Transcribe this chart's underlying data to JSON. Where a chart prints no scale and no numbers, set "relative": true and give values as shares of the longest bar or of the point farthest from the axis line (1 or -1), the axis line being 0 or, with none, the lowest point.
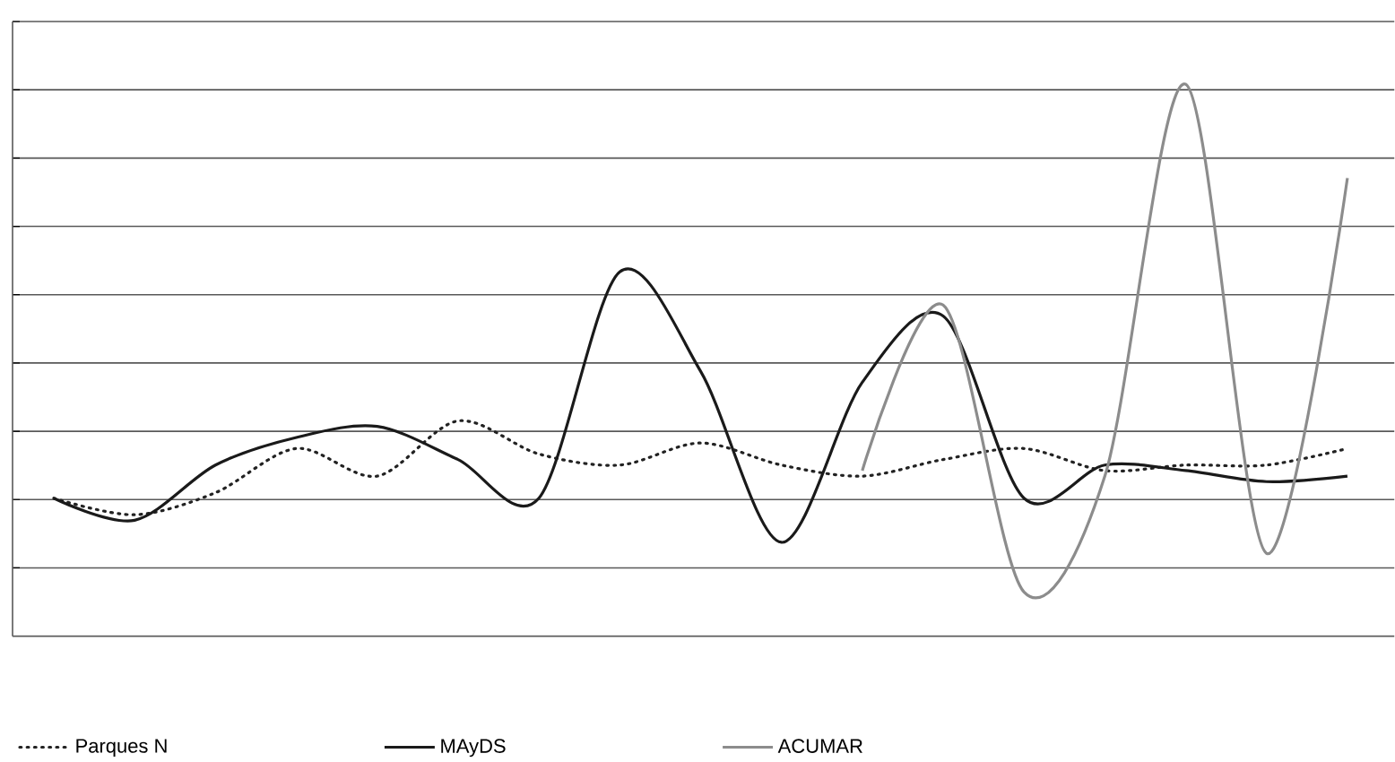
{
  "chart_data": {
    "type": "line",
    "relative": true,
    "grid": "y",
    "legend": "bottom",
    "marker": "none",
    "categories": [
      null,
      null,
      null,
      null,
      null,
      null,
      null,
      null,
      null,
      null,
      null,
      null,
      null,
      null,
      null,
      null,
      null
    ],
    "series": [
      {
        "name": "Parques N",
        "color": "#222222",
        "line_style": "dotted",
        "values": [
          0.25,
          0.22,
          0.26,
          0.34,
          0.29,
          0.39,
          0.33,
          0.31,
          0.35,
          0.31,
          0.29,
          0.32,
          0.34,
          0.3,
          0.31,
          0.31,
          0.34
        ]
      },
      {
        "name": "MAyDS",
        "color": "#1a1a1a",
        "line_style": "solid",
        "values": [
          0.25,
          0.21,
          0.31,
          0.36,
          0.38,
          0.32,
          0.25,
          0.66,
          0.48,
          0.17,
          0.46,
          0.58,
          0.25,
          0.31,
          0.3,
          0.28,
          0.29
        ]
      },
      {
        "name": "ACUMAR",
        "color": "#8c8c8c",
        "line_style": "solid",
        "values": [
          null,
          null,
          null,
          null,
          null,
          null,
          null,
          null,
          null,
          null,
          0.3,
          0.6,
          0.08,
          0.29,
          1.0,
          0.15,
          0.83
        ]
      }
    ]
  }
}
